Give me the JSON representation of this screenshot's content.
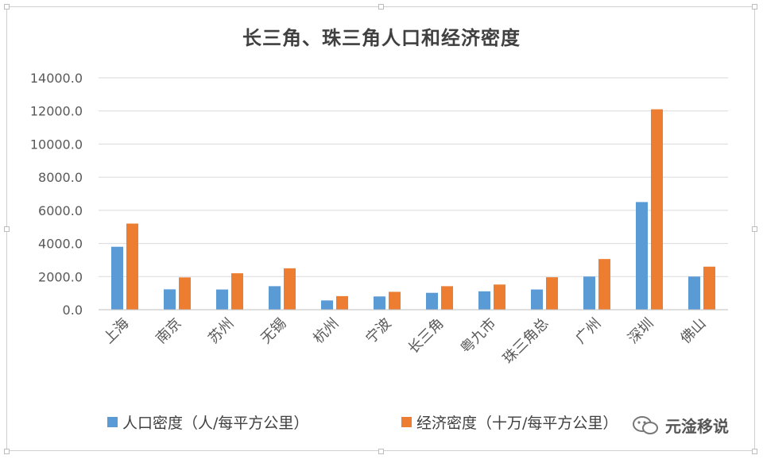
{
  "chart_data": {
    "type": "bar",
    "title": "长三角、珠三角人口和经济密度",
    "categories": [
      "上海",
      "南京",
      "苏州",
      "无锡",
      "杭州",
      "宁波",
      "长三角",
      "粤九市",
      "珠三角总",
      "广州",
      "深圳",
      "佛山"
    ],
    "series": [
      {
        "name": "人口密度（人/每平方公里）",
        "color": "#5b9bd5",
        "values": [
          3800,
          1230,
          1220,
          1420,
          560,
          800,
          1020,
          1110,
          1220,
          2000,
          6500,
          2000
        ]
      },
      {
        "name": "经济密度（十万/每平方公里）",
        "color": "#ed7d31",
        "values": [
          5200,
          1950,
          2200,
          2500,
          820,
          1080,
          1420,
          1520,
          1960,
          3060,
          12100,
          2600
        ]
      }
    ],
    "y_ticks": [
      "14000.0",
      "12000.0",
      "10000.0",
      "8000.0",
      "6000.0",
      "4000.0",
      "2000.0",
      "0.0"
    ],
    "ylim": [
      0,
      14000
    ],
    "grid": true,
    "legend_position": "bottom"
  },
  "watermark": {
    "text": "元淦移说",
    "icon": "wechat-icon"
  }
}
